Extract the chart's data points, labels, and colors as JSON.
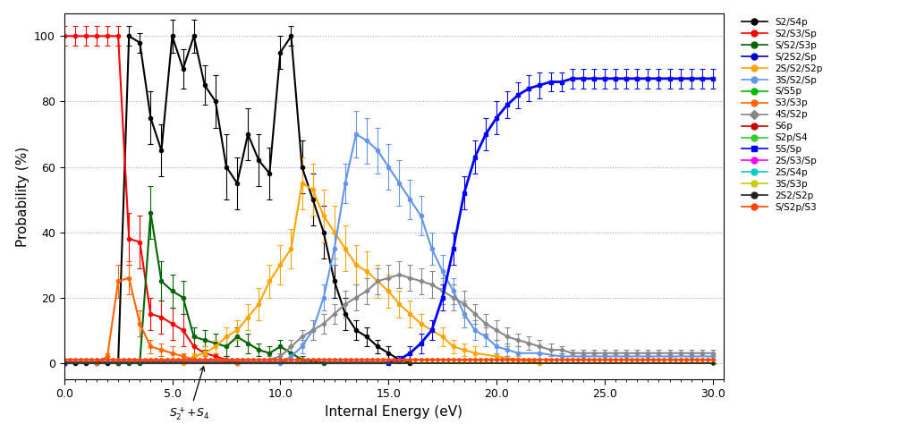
{
  "xlabel": "Internal Energy (eV)",
  "ylabel": "Probability (%)",
  "xlim": [
    0.0,
    30.5
  ],
  "ylim": [
    -5,
    107
  ],
  "figsize": [
    10.24,
    4.93
  ],
  "dpi": 100,
  "series": [
    {
      "label": "S2/S4p",
      "color": "#000000",
      "marker": "o",
      "lw": 1.5,
      "ms": 3.0,
      "x": [
        0.0,
        0.5,
        1.0,
        1.5,
        2.0,
        2.5,
        3.0,
        3.5,
        4.0,
        4.5,
        5.0,
        5.5,
        6.0,
        6.5,
        7.0,
        7.5,
        8.0,
        8.5,
        9.0,
        9.5,
        10.0,
        10.5,
        11.0,
        11.5,
        12.0,
        12.5,
        13.0,
        13.5,
        14.0,
        14.5,
        15.0,
        15.5,
        16.0
      ],
      "y": [
        0,
        0,
        0,
        0,
        0,
        0,
        100,
        98,
        75,
        65,
        100,
        90,
        100,
        85,
        80,
        60,
        55,
        70,
        62,
        58,
        95,
        100,
        60,
        50,
        40,
        25,
        15,
        10,
        8,
        5,
        3,
        1,
        0
      ],
      "yerr": [
        0,
        0,
        0,
        0,
        0,
        0,
        3,
        3,
        8,
        8,
        5,
        6,
        5,
        6,
        8,
        10,
        8,
        8,
        8,
        8,
        5,
        3,
        8,
        8,
        8,
        5,
        5,
        3,
        3,
        2,
        2,
        1,
        0
      ]
    },
    {
      "label": "S2/S3/Sp",
      "color": "#ff0000",
      "marker": "o",
      "lw": 1.5,
      "ms": 3.0,
      "x": [
        0.0,
        0.5,
        1.0,
        1.5,
        2.0,
        2.5,
        3.0,
        3.5,
        4.0,
        4.5,
        5.0,
        5.5,
        6.0,
        6.5,
        7.0,
        7.5,
        8.0
      ],
      "y": [
        100,
        100,
        100,
        100,
        100,
        100,
        38,
        37,
        15,
        14,
        12,
        10,
        5,
        3,
        2,
        1,
        0
      ],
      "yerr": [
        3,
        3,
        3,
        3,
        3,
        3,
        8,
        8,
        5,
        5,
        5,
        5,
        3,
        2,
        1,
        1,
        0
      ]
    },
    {
      "label": "S/S2/S3p",
      "color": "#006400",
      "marker": "o",
      "lw": 1.5,
      "ms": 3.0,
      "x": [
        0.0,
        2.5,
        3.0,
        3.5,
        4.0,
        4.5,
        5.0,
        5.5,
        6.0,
        6.5,
        7.0,
        7.5,
        8.0,
        8.5,
        9.0,
        9.5,
        10.0,
        10.5,
        11.0,
        12.0
      ],
      "y": [
        0,
        0,
        0,
        0,
        46,
        25,
        22,
        20,
        8,
        7,
        6,
        5,
        8,
        6,
        4,
        3,
        5,
        3,
        1,
        0
      ],
      "yerr": [
        0,
        0,
        0,
        0,
        8,
        6,
        5,
        5,
        3,
        3,
        3,
        3,
        3,
        3,
        2,
        2,
        2,
        2,
        1,
        0
      ]
    },
    {
      "label": "S/2S2/Sp",
      "color": "#0000cd",
      "marker": "o",
      "lw": 1.2,
      "ms": 2.0,
      "x": [
        0.0,
        30.0
      ],
      "y": [
        0,
        0
      ],
      "yerr": [
        0,
        0
      ]
    },
    {
      "label": "2S/S2/S2p",
      "color": "#ffa500",
      "marker": "o",
      "lw": 1.5,
      "ms": 3.0,
      "x": [
        0.0,
        5.5,
        6.0,
        6.5,
        7.0,
        7.5,
        8.0,
        8.5,
        9.0,
        9.5,
        10.0,
        10.5,
        11.0,
        11.5,
        12.0,
        12.5,
        13.0,
        13.5,
        14.0,
        14.5,
        15.0,
        15.5,
        16.0,
        16.5,
        17.0,
        17.5,
        18.0,
        18.5,
        19.0,
        20.0,
        21.0,
        22.0
      ],
      "y": [
        0,
        0,
        2,
        3,
        5,
        8,
        10,
        14,
        18,
        25,
        30,
        35,
        55,
        53,
        45,
        40,
        35,
        30,
        28,
        25,
        22,
        18,
        15,
        12,
        10,
        8,
        5,
        4,
        3,
        2,
        1,
        0
      ],
      "yerr": [
        0,
        0,
        1,
        2,
        2,
        3,
        3,
        4,
        5,
        5,
        6,
        6,
        8,
        8,
        8,
        8,
        7,
        6,
        6,
        5,
        5,
        4,
        4,
        3,
        3,
        3,
        2,
        2,
        2,
        1,
        1,
        0
      ]
    },
    {
      "label": "3S/S2/Sp",
      "color": "#6495ed",
      "marker": "o",
      "lw": 1.5,
      "ms": 3.0,
      "x": [
        0.0,
        10.0,
        10.5,
        11.0,
        11.5,
        12.0,
        12.5,
        13.0,
        13.5,
        14.0,
        14.5,
        15.0,
        15.5,
        16.0,
        16.5,
        17.0,
        17.5,
        18.0,
        18.5,
        19.0,
        19.5,
        20.0,
        20.5,
        21.0,
        22.0,
        23.0,
        24.0,
        25.0,
        26.0,
        27.0,
        28.0,
        29.0,
        30.0
      ],
      "y": [
        0,
        0,
        2,
        5,
        10,
        20,
        35,
        55,
        70,
        68,
        65,
        60,
        55,
        50,
        45,
        35,
        28,
        22,
        15,
        10,
        8,
        5,
        4,
        3,
        3,
        2,
        2,
        2,
        2,
        2,
        2,
        2,
        2
      ],
      "yerr": [
        0,
        0,
        1,
        2,
        3,
        4,
        5,
        6,
        7,
        7,
        7,
        7,
        7,
        6,
        6,
        5,
        5,
        4,
        4,
        3,
        3,
        2,
        2,
        2,
        2,
        1,
        1,
        1,
        1,
        1,
        1,
        1,
        1
      ]
    },
    {
      "label": "S/S5p",
      "color": "#00bb00",
      "marker": "o",
      "lw": 1.2,
      "ms": 2.0,
      "x": [
        0.0,
        30.0
      ],
      "y": [
        0,
        0
      ],
      "yerr": [
        0,
        0
      ]
    },
    {
      "label": "S3/S3p",
      "color": "#ff6600",
      "marker": "o",
      "lw": 1.5,
      "ms": 3.0,
      "x": [
        0.0,
        1.5,
        2.0,
        2.5,
        3.0,
        3.5,
        4.0,
        4.5,
        5.0,
        5.5,
        6.0,
        6.5,
        7.0,
        8.0
      ],
      "y": [
        0,
        0,
        2,
        25,
        26,
        12,
        5,
        4,
        3,
        2,
        1,
        1,
        1,
        0
      ],
      "yerr": [
        0,
        0,
        1,
        5,
        5,
        4,
        2,
        2,
        2,
        1,
        1,
        1,
        1,
        0
      ]
    },
    {
      "label": "4S/S2p",
      "color": "#888888",
      "marker": "D",
      "lw": 1.5,
      "ms": 2.5,
      "x": [
        0.0,
        9.5,
        10.0,
        10.5,
        11.0,
        11.5,
        12.0,
        12.5,
        13.0,
        13.5,
        14.0,
        14.5,
        15.0,
        15.5,
        16.0,
        16.5,
        17.0,
        17.5,
        18.0,
        18.5,
        19.0,
        19.5,
        20.0,
        20.5,
        21.0,
        21.5,
        22.0,
        22.5,
        23.0,
        23.5,
        24.0,
        24.5,
        25.0,
        25.5,
        26.0,
        26.5,
        27.0,
        27.5,
        28.0,
        28.5,
        29.0,
        29.5,
        30.0
      ],
      "y": [
        0,
        1,
        2,
        5,
        8,
        10,
        12,
        15,
        18,
        20,
        22,
        25,
        26,
        27,
        26,
        25,
        24,
        22,
        20,
        18,
        15,
        12,
        10,
        8,
        7,
        6,
        5,
        4,
        4,
        3,
        3,
        3,
        3,
        3,
        3,
        3,
        3,
        3,
        3,
        3,
        3,
        3,
        3
      ],
      "yerr": [
        0,
        1,
        1,
        2,
        2,
        3,
        3,
        3,
        4,
        4,
        4,
        4,
        4,
        4,
        4,
        4,
        4,
        4,
        4,
        4,
        3,
        3,
        3,
        3,
        2,
        2,
        2,
        2,
        1,
        1,
        1,
        1,
        1,
        1,
        1,
        1,
        1,
        1,
        1,
        1,
        1,
        1,
        1
      ]
    },
    {
      "label": "S6p",
      "color": "#cc0000",
      "marker": "o",
      "lw": 1.2,
      "ms": 2.0,
      "x": [
        0.0,
        30.0
      ],
      "y": [
        0,
        0
      ],
      "yerr": [
        0,
        0
      ]
    },
    {
      "label": "S2p/S4",
      "color": "#33cc33",
      "marker": "o",
      "lw": 1.2,
      "ms": 2.0,
      "x": [
        0.0,
        30.0
      ],
      "y": [
        0,
        0
      ],
      "yerr": [
        0,
        0
      ]
    },
    {
      "label": "5S/Sp",
      "color": "#0000ff",
      "marker": "s",
      "lw": 2.0,
      "ms": 3.5,
      "x": [
        0.0,
        15.0,
        15.5,
        16.0,
        16.5,
        17.0,
        17.5,
        18.0,
        18.5,
        19.0,
        19.5,
        20.0,
        20.5,
        21.0,
        21.5,
        22.0,
        22.5,
        23.0,
        23.5,
        24.0,
        24.5,
        25.0,
        25.5,
        26.0,
        26.5,
        27.0,
        27.5,
        28.0,
        28.5,
        29.0,
        29.5,
        30.0
      ],
      "y": [
        0,
        0,
        1,
        3,
        6,
        10,
        20,
        35,
        52,
        63,
        70,
        75,
        79,
        82,
        84,
        85,
        86,
        86,
        87,
        87,
        87,
        87,
        87,
        87,
        87,
        87,
        87,
        87,
        87,
        87,
        87,
        87
      ],
      "yerr": [
        0,
        0,
        1,
        2,
        3,
        3,
        4,
        5,
        5,
        5,
        5,
        5,
        4,
        4,
        4,
        4,
        3,
        3,
        3,
        3,
        3,
        3,
        3,
        3,
        3,
        3,
        3,
        3,
        3,
        3,
        3,
        3
      ]
    },
    {
      "label": "2S/S3/Sp",
      "color": "#ff00ff",
      "marker": "o",
      "lw": 1.2,
      "ms": 2.0,
      "x": [
        0.0,
        30.0
      ],
      "y": [
        0,
        0
      ],
      "yerr": [
        0,
        0
      ]
    },
    {
      "label": "2S/S4p",
      "color": "#00cccc",
      "marker": "o",
      "lw": 1.2,
      "ms": 2.0,
      "x": [
        0.0,
        30.0
      ],
      "y": [
        0,
        0
      ],
      "yerr": [
        0,
        0
      ]
    },
    {
      "label": "3S/S3p",
      "color": "#cccc00",
      "marker": "o",
      "lw": 1.2,
      "ms": 2.0,
      "x": [
        0.0,
        30.0
      ],
      "y": [
        0,
        0
      ],
      "yerr": [
        0,
        0
      ]
    },
    {
      "label": "2S2/S2p",
      "color": "#222222",
      "marker": "o",
      "lw": 1.2,
      "ms": 2.0,
      "x": [
        0.0,
        30.0
      ],
      "y": [
        0,
        0
      ],
      "yerr": [
        0,
        0
      ]
    },
    {
      "label": "S/S2p/S3",
      "color": "#ff4500",
      "marker": "o",
      "lw": 1.2,
      "ms": 2.5,
      "x": [
        0.0,
        0.25,
        0.5,
        0.75,
        1.0,
        1.25,
        1.5,
        1.75,
        2.0,
        2.25,
        2.5,
        2.75,
        3.0,
        3.25,
        3.5,
        3.75,
        4.0,
        4.25,
        4.5,
        4.75,
        5.0,
        5.25,
        5.5,
        5.75,
        6.0,
        6.25,
        6.5,
        6.75,
        7.0,
        7.25,
        7.5,
        7.75,
        8.0,
        8.25,
        8.5,
        8.75,
        9.0,
        9.25,
        9.5,
        9.75,
        10.0,
        10.25,
        10.5,
        10.75,
        11.0,
        11.25,
        11.5,
        11.75,
        12.0,
        12.25,
        12.5,
        12.75,
        13.0,
        13.25,
        13.5,
        13.75,
        14.0,
        14.25,
        14.5,
        14.75,
        15.0,
        15.25,
        15.5,
        15.75,
        16.0,
        16.25,
        16.5,
        16.75,
        17.0,
        17.25,
        17.5,
        17.75,
        18.0,
        18.25,
        18.5,
        18.75,
        19.0,
        19.25,
        19.5,
        19.75,
        20.0,
        20.25,
        20.5,
        20.75,
        21.0,
        21.25,
        21.5,
        21.75,
        22.0,
        22.25,
        22.5,
        22.75,
        23.0,
        23.25,
        23.5,
        23.75,
        24.0,
        24.25,
        24.5,
        24.75,
        25.0,
        25.25,
        25.5,
        25.75,
        26.0,
        26.25,
        26.5,
        26.75,
        27.0,
        27.25,
        27.5,
        27.75,
        28.0,
        28.25,
        28.5,
        28.75,
        29.0,
        29.25,
        29.5,
        29.75,
        30.0
      ],
      "y": [
        1,
        1,
        1,
        1,
        1,
        1,
        1,
        1,
        1,
        1,
        1,
        1,
        1,
        1,
        1,
        1,
        1,
        1,
        1,
        1,
        1,
        1,
        1,
        1,
        1,
        1,
        1,
        1,
        1,
        1,
        1,
        1,
        1,
        1,
        1,
        1,
        1,
        1,
        1,
        1,
        1,
        1,
        1,
        1,
        1,
        1,
        1,
        1,
        1,
        1,
        1,
        1,
        1,
        1,
        1,
        1,
        1,
        1,
        1,
        1,
        1,
        1,
        1,
        1,
        1,
        1,
        1,
        1,
        1,
        1,
        1,
        1,
        1,
        1,
        1,
        1,
        1,
        1,
        1,
        1,
        1,
        1,
        1,
        1,
        1,
        1,
        1,
        1,
        1,
        1,
        1,
        1,
        1,
        1,
        1,
        1,
        1,
        1,
        1,
        1,
        1,
        1,
        1,
        1,
        1,
        1,
        1,
        1,
        1,
        1,
        1,
        1,
        1,
        1,
        1,
        1,
        1,
        1,
        1,
        1,
        1
      ],
      "yerr": [
        0,
        0,
        0,
        0,
        0,
        0,
        0,
        0,
        0,
        0,
        0,
        0,
        0,
        0,
        0,
        0,
        0,
        0,
        0,
        0,
        0,
        0,
        0,
        0,
        0,
        0,
        0,
        0,
        0,
        0,
        0,
        0,
        0,
        0,
        0,
        0,
        0,
        0,
        0,
        0,
        0,
        0,
        0,
        0,
        0,
        0,
        0,
        0,
        0,
        0,
        0,
        0,
        0,
        0,
        0,
        0,
        0,
        0,
        0,
        0,
        0,
        0,
        0,
        0,
        0,
        0,
        0,
        0,
        0,
        0,
        0,
        0,
        0,
        0,
        0,
        0,
        0,
        0,
        0,
        0,
        0,
        0,
        0,
        0,
        0,
        0,
        0,
        0,
        0,
        0,
        0,
        0,
        0,
        0,
        0,
        0,
        0,
        0,
        0,
        0,
        0,
        0,
        0,
        0,
        0,
        0,
        0,
        0,
        0,
        0,
        0,
        0,
        0,
        0,
        0,
        0,
        0,
        0,
        0,
        0,
        0
      ]
    }
  ],
  "legend_entries": [
    [
      "S2/S4p",
      "#000000",
      "o"
    ],
    [
      "S2/S3/Sp",
      "#ff0000",
      "o"
    ],
    [
      "S/S2/S3p",
      "#006400",
      "o"
    ],
    [
      "S/2S2/Sp",
      "#0000cd",
      "o"
    ],
    [
      "2S/S2/S2p",
      "#ffa500",
      "o"
    ],
    [
      "3S/S2/Sp",
      "#6495ed",
      "o"
    ],
    [
      "S/S5p",
      "#00bb00",
      "o"
    ],
    [
      "S3/S3p",
      "#ff6600",
      "o"
    ],
    [
      "4S/S2p",
      "#888888",
      "D"
    ],
    [
      "S6p",
      "#cc0000",
      "o"
    ],
    [
      "S2p/S4",
      "#33cc33",
      "o"
    ],
    [
      "5S/Sp",
      "#0000ff",
      "s"
    ],
    [
      "2S/S3/Sp",
      "#ff00ff",
      "o"
    ],
    [
      "2S/S4p",
      "#00cccc",
      "o"
    ],
    [
      "3S/S3p",
      "#cccc00",
      "o"
    ],
    [
      "2S2/S2p",
      "#222222",
      "o"
    ],
    [
      "S/S2p/S3",
      "#ff4500",
      "o"
    ]
  ]
}
